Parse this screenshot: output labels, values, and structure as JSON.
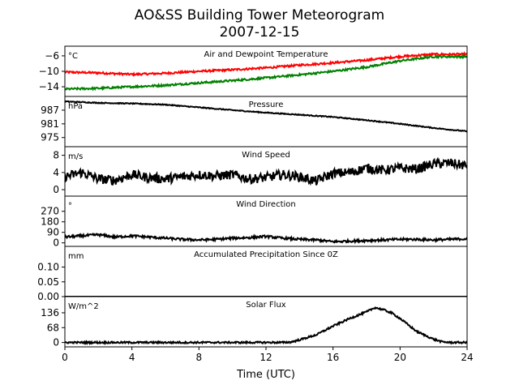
{
  "figure": {
    "title_line1": "AO&SS Building Tower Meteorogram",
    "title_line2": "2007-12-15",
    "xlabel": "Time (UTC)"
  },
  "chart_data": [
    {
      "type": "line",
      "title": "Air and Dewpoint Temperature",
      "unit": "°C",
      "ylim": [
        -16.5,
        -3.5
      ],
      "yticks": [
        -6,
        -10,
        -14
      ],
      "ytick_labels": [
        "−6",
        "−10",
        "−14"
      ],
      "xlim": [
        0,
        24
      ],
      "series": [
        {
          "color": "#ff0000",
          "noise": 0.25,
          "x": [
            0,
            2,
            4,
            6,
            8,
            10,
            12,
            14,
            16,
            18,
            20,
            22,
            24
          ],
          "y": [
            -10.2,
            -10.4,
            -10.8,
            -10.5,
            -10.0,
            -9.6,
            -9.1,
            -8.4,
            -7.8,
            -7.1,
            -6.2,
            -5.6,
            -5.6
          ]
        },
        {
          "color": "#008000",
          "noise": 0.25,
          "x": [
            0,
            2,
            4,
            6,
            8,
            10,
            12,
            14,
            16,
            18,
            20,
            22,
            24
          ],
          "y": [
            -14.6,
            -14.4,
            -14.0,
            -13.6,
            -13.0,
            -12.4,
            -11.7,
            -10.9,
            -10.0,
            -8.9,
            -7.3,
            -6.2,
            -6.2
          ]
        }
      ]
    },
    {
      "type": "line",
      "title": "Pressure",
      "unit": "hPa",
      "ylim": [
        971,
        993
      ],
      "yticks": [
        987,
        981,
        975
      ],
      "ytick_labels": [
        "987",
        "981",
        "975"
      ],
      "xlim": [
        0,
        24
      ],
      "series": [
        {
          "color": "#000000",
          "noise": 0.2,
          "x": [
            0,
            2,
            4,
            6,
            8,
            10,
            12,
            14,
            16,
            18,
            20,
            22,
            24
          ],
          "y": [
            990.8,
            990.2,
            989.9,
            989.4,
            988.2,
            987.0,
            985.9,
            985.0,
            984.0,
            982.6,
            981.0,
            979.2,
            977.7
          ]
        }
      ]
    },
    {
      "type": "line",
      "title": "Wind Speed",
      "unit": "m/s",
      "ylim": [
        -1.5,
        10
      ],
      "yticks": [
        8,
        4,
        0
      ],
      "ytick_labels": [
        "8",
        "4",
        "0"
      ],
      "xlim": [
        0,
        24
      ],
      "series": [
        {
          "color": "#000000",
          "noise": 1.1,
          "x": [
            0,
            1,
            2,
            3,
            4,
            5,
            6,
            7,
            8,
            9,
            10,
            11,
            12,
            13,
            14,
            15,
            16,
            17,
            18,
            19,
            20,
            21,
            22,
            23,
            24
          ],
          "y": [
            3.0,
            4.0,
            2.5,
            2.2,
            3.5,
            2.8,
            2.5,
            3.0,
            3.5,
            3.2,
            3.5,
            2.5,
            2.8,
            3.5,
            3.0,
            2.0,
            3.8,
            4.0,
            5.0,
            4.5,
            5.0,
            4.8,
            6.0,
            6.2,
            5.5
          ]
        }
      ]
    },
    {
      "type": "line",
      "title": "Wind Direction",
      "unit": "°",
      "ylim": [
        -30,
        400
      ],
      "yticks": [
        270,
        180,
        90,
        0
      ],
      "ytick_labels": [
        "270",
        "180",
        "90",
        "0"
      ],
      "xlim": [
        0,
        24
      ],
      "series": [
        {
          "color": "#000000",
          "noise": 10,
          "x": [
            0,
            1,
            2,
            3,
            4,
            5,
            6,
            7,
            8,
            9,
            10,
            11,
            12,
            13,
            14,
            15,
            16,
            17,
            18,
            19,
            20,
            21,
            22,
            23,
            24
          ],
          "y": [
            50,
            60,
            70,
            50,
            60,
            50,
            40,
            30,
            25,
            30,
            40,
            45,
            55,
            40,
            30,
            25,
            10,
            15,
            20,
            25,
            30,
            30,
            25,
            30,
            35
          ]
        }
      ]
    },
    {
      "type": "line",
      "title": "Accumulated Precipitation Since 0Z",
      "unit": "mm",
      "ylim": [
        0,
        0.17
      ],
      "yticks": [
        0.1,
        0.05,
        0.0
      ],
      "ytick_labels": [
        "0.10",
        "0.05",
        "0.00"
      ],
      "xlim": [
        0,
        24
      ],
      "series": [
        {
          "color": "#000000",
          "noise": 0,
          "x": [
            0,
            24
          ],
          "y": [
            0,
            0
          ]
        }
      ]
    },
    {
      "type": "line",
      "title": "Solar Flux",
      "unit": "W/m^2",
      "ylim": [
        -20,
        210
      ],
      "yticks": [
        136,
        68,
        0
      ],
      "ytick_labels": [
        "136",
        "68",
        "0"
      ],
      "xlim": [
        0,
        24
      ],
      "xticks": [
        0,
        4,
        8,
        12,
        16,
        20,
        24
      ],
      "xtick_labels": [
        "0",
        "4",
        "8",
        "12",
        "16",
        "20",
        "24"
      ],
      "series": [
        {
          "color": "#000000",
          "noise": 4,
          "x": [
            0,
            13,
            13.5,
            14,
            15,
            16,
            17,
            18,
            18.5,
            19,
            19.5,
            20,
            21,
            22,
            22.5,
            23,
            24
          ],
          "y": [
            0,
            0,
            2,
            12,
            35,
            75,
            110,
            140,
            160,
            150,
            135,
            110,
            50,
            15,
            3,
            0,
            0
          ]
        }
      ]
    }
  ]
}
